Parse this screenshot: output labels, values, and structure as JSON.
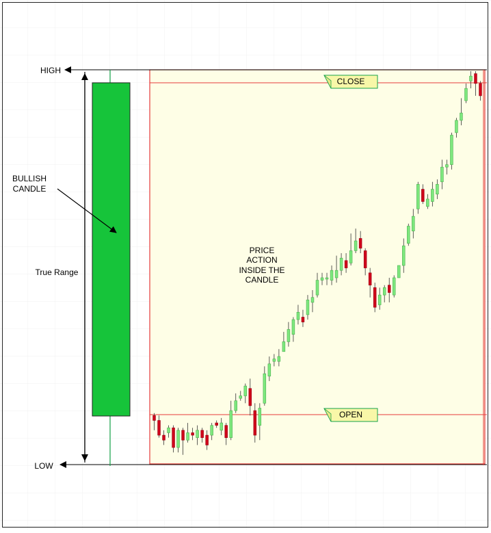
{
  "labels": {
    "high": "HIGH",
    "low": "LOW",
    "bullish_line1": "BULLISH",
    "bullish_line2": "CANDLE",
    "true_range": "True Range",
    "price_action": [
      "PRICE",
      "ACTION",
      "INSIDE THE",
      "CANDLE"
    ],
    "close_tag": "CLOSE",
    "open_tag": "OPEN"
  },
  "colors": {
    "bullish_candle": "#16c43a",
    "bull_bar": "#7ee87e",
    "bear_bar": "#d0021b",
    "frame_red": "#e53b3b",
    "panel_bg": "#fefee6",
    "tag_bg": "#f8f7a8"
  },
  "chart_data": {
    "type": "candlestick",
    "price_scale": {
      "low": 0,
      "open": 15,
      "close": 100,
      "high": 104
    },
    "candles": [
      [
        18,
        16,
        12,
        19
      ],
      [
        16,
        10,
        9,
        18
      ],
      [
        10,
        8,
        6,
        12
      ],
      [
        11,
        13,
        9,
        14
      ],
      [
        13,
        5,
        3,
        14
      ],
      [
        5,
        12,
        3,
        13
      ],
      [
        12,
        8,
        2,
        13
      ],
      [
        8,
        11,
        7,
        15
      ],
      [
        11,
        10,
        8,
        13
      ],
      [
        9,
        12,
        6,
        14
      ],
      [
        12,
        9,
        7,
        13
      ],
      [
        10,
        6,
        4,
        12
      ],
      [
        10,
        14,
        8,
        15
      ],
      [
        15,
        14,
        13,
        16
      ],
      [
        12,
        15,
        10,
        17
      ],
      [
        14,
        9,
        6,
        15
      ],
      [
        9,
        20,
        8,
        24
      ],
      [
        20,
        24,
        19,
        27
      ],
      [
        25,
        26,
        24,
        28
      ],
      [
        26,
        30,
        23,
        31
      ],
      [
        29,
        22,
        18,
        33
      ],
      [
        20,
        10,
        7,
        23
      ],
      [
        14,
        21,
        8,
        23
      ],
      [
        23,
        35,
        22,
        38
      ],
      [
        34,
        39,
        32,
        42
      ],
      [
        40,
        41,
        38,
        43
      ],
      [
        40,
        42,
        38,
        45
      ],
      [
        44,
        48,
        44,
        52
      ],
      [
        48,
        53,
        46,
        56
      ],
      [
        51,
        57,
        48,
        58
      ],
      [
        57,
        60,
        55,
        63
      ],
      [
        58,
        56,
        54,
        61
      ],
      [
        59,
        65,
        57,
        67
      ],
      [
        64,
        66,
        60,
        69
      ],
      [
        67,
        73,
        66,
        76
      ],
      [
        73,
        74,
        71,
        76
      ],
      [
        74,
        74,
        71,
        76
      ],
      [
        73,
        77,
        71,
        79
      ],
      [
        74,
        77,
        72,
        83
      ],
      [
        77,
        82,
        75,
        84
      ],
      [
        81,
        78,
        76,
        84
      ],
      [
        80,
        85,
        79,
        92
      ],
      [
        85,
        89,
        84,
        94
      ],
      [
        90,
        86,
        84,
        93
      ],
      [
        85,
        78,
        75,
        86
      ],
      [
        76,
        71,
        66,
        78
      ],
      [
        70,
        62,
        60,
        72
      ],
      [
        63,
        67,
        61,
        70
      ],
      [
        67,
        70,
        64,
        71
      ],
      [
        71,
        68,
        64,
        74
      ],
      [
        67,
        74,
        66,
        75
      ],
      [
        74,
        79,
        74,
        79
      ],
      [
        79,
        87,
        76,
        90
      ],
      [
        88,
        95,
        87,
        96
      ],
      [
        93,
        99,
        90,
        102
      ],
      [
        102,
        112,
        100,
        113
      ],
      [
        110,
        105,
        104,
        112
      ],
      [
        103,
        106,
        102,
        108
      ],
      [
        105,
        110,
        103,
        113
      ],
      [
        108,
        112,
        106,
        114
      ],
      [
        113,
        119,
        110,
        122
      ],
      [
        119,
        120,
        116,
        122
      ],
      [
        120,
        132,
        118,
        133
      ],
      [
        133,
        138,
        131,
        139
      ],
      [
        138,
        141,
        136,
        147
      ],
      [
        146,
        151,
        145,
        153
      ],
      [
        154,
        156,
        151,
        158
      ],
      [
        157,
        153,
        148,
        158
      ],
      [
        153,
        148,
        146,
        154
      ]
    ]
  }
}
